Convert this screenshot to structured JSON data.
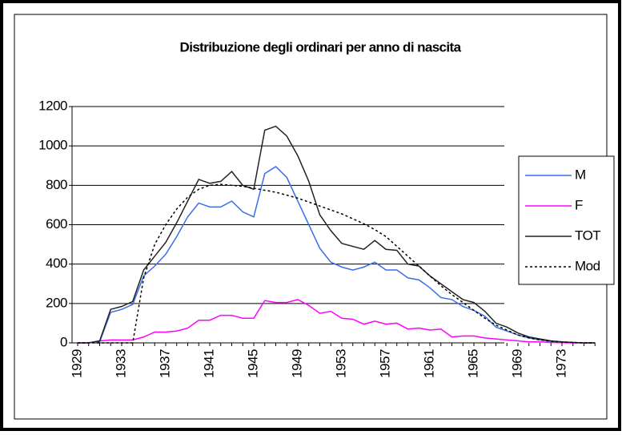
{
  "chart_data": {
    "type": "line",
    "title": "Distribuzione degli ordinari per anno di nascita",
    "categories": [
      "1929",
      null,
      null,
      null,
      "1933",
      null,
      null,
      null,
      "1937",
      null,
      null,
      null,
      "1941",
      null,
      null,
      null,
      "1945",
      null,
      null,
      null,
      "1949",
      null,
      null,
      null,
      "1953",
      null,
      null,
      null,
      "1957",
      null,
      null,
      null,
      "1961",
      null,
      null,
      null,
      "1965",
      null,
      null,
      null,
      "1969",
      null,
      null,
      null,
      "1973",
      null,
      null,
      null
    ],
    "ylim": [
      0,
      1200
    ],
    "yticks": [
      0,
      200,
      400,
      600,
      800,
      1000,
      1200
    ],
    "grid": true,
    "series": [
      {
        "name": "M",
        "color": "#3a6ee8",
        "dashed": false,
        "values": [
          0,
          0,
          5,
          155,
          170,
          195,
          340,
          390,
          450,
          540,
          640,
          710,
          690,
          690,
          720,
          665,
          640,
          860,
          895,
          840,
          720,
          600,
          480,
          410,
          385,
          370,
          385,
          410,
          370,
          370,
          330,
          320,
          280,
          230,
          220,
          185,
          165,
          135,
          80,
          60,
          40,
          25,
          15,
          8,
          4,
          2,
          0,
          0
        ]
      },
      {
        "name": "F",
        "color": "#ff00ff",
        "dashed": false,
        "values": [
          0,
          0,
          10,
          15,
          15,
          15,
          30,
          55,
          55,
          60,
          75,
          115,
          115,
          140,
          140,
          125,
          125,
          215,
          205,
          205,
          220,
          190,
          150,
          160,
          125,
          120,
          95,
          110,
          95,
          100,
          70,
          75,
          65,
          70,
          30,
          35,
          35,
          25,
          20,
          15,
          10,
          5,
          5,
          2,
          1,
          0,
          0,
          0
        ]
      },
      {
        "name": "TOT",
        "color": "#222222",
        "dashed": false,
        "values": [
          0,
          0,
          10,
          170,
          185,
          210,
          370,
          440,
          510,
          610,
          720,
          830,
          810,
          820,
          870,
          800,
          780,
          1080,
          1100,
          1050,
          950,
          820,
          650,
          570,
          505,
          490,
          475,
          520,
          475,
          470,
          400,
          390,
          340,
          300,
          260,
          220,
          205,
          160,
          100,
          80,
          50,
          30,
          20,
          10,
          5,
          2,
          0,
          0
        ]
      },
      {
        "name": "Mod",
        "color": "#000000",
        "dashed": true,
        "values": [
          0,
          0,
          0,
          0,
          0,
          0,
          330,
          500,
          600,
          680,
          740,
          780,
          800,
          805,
          800,
          795,
          785,
          775,
          765,
          750,
          735,
          715,
          695,
          675,
          655,
          630,
          605,
          575,
          540,
          490,
          440,
          390,
          340,
          290,
          245,
          205,
          165,
          125,
          90,
          65,
          40,
          25,
          15,
          8,
          4,
          2,
          0,
          0
        ]
      }
    ]
  }
}
